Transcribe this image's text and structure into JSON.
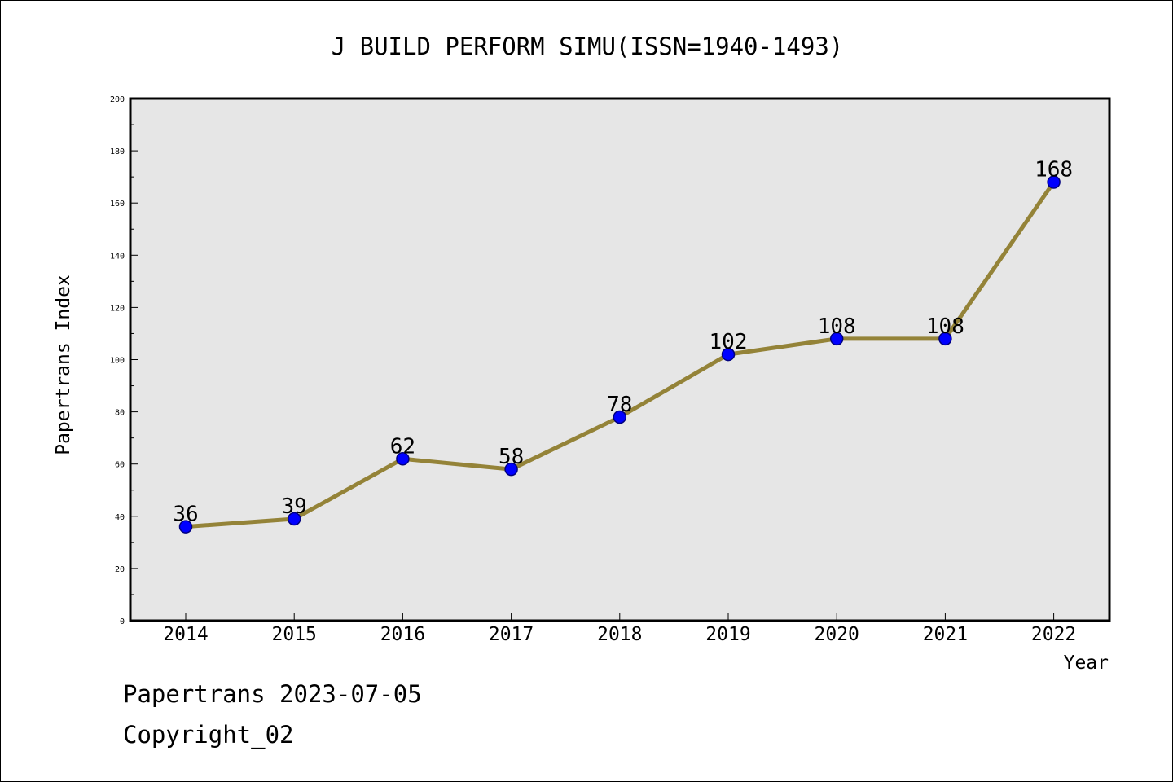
{
  "chart_data": {
    "type": "line",
    "title": "J BUILD PERFORM SIMU(ISSN=1940-1493)",
    "xlabel": "Year",
    "ylabel": "Papertrans Index",
    "categories": [
      "2014",
      "2015",
      "2016",
      "2017",
      "2018",
      "2019",
      "2020",
      "2021",
      "2022"
    ],
    "values": [
      36,
      39,
      62,
      58,
      78,
      102,
      108,
      108,
      168
    ],
    "data_labels": [
      "36",
      "39",
      "62",
      "58",
      "78",
      "102",
      "108",
      "108",
      "168"
    ],
    "ylim": [
      0,
      200
    ],
    "yticks": [
      "0",
      "20",
      "40",
      "60",
      "80",
      "100",
      "120",
      "140",
      "160",
      "180",
      "200"
    ],
    "grid": false,
    "colors": {
      "plot_background": "#e6e6e6",
      "line": "#948338",
      "marker": "#0000ff",
      "marker_edge": "#000080"
    }
  },
  "footer": {
    "date_text": "Papertrans 2023-07-05",
    "copyright_text": "Copyright_02"
  }
}
